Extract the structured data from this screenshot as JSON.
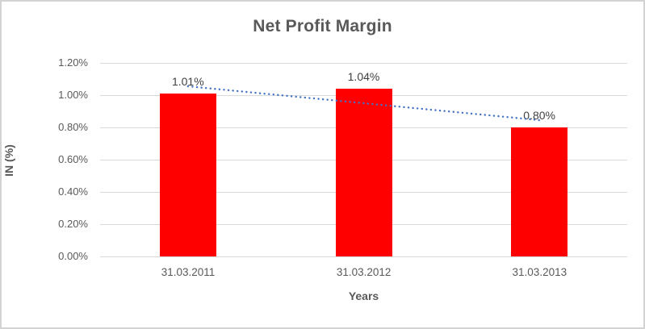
{
  "chart_data": {
    "type": "bar",
    "title": "Net Profit Margin",
    "xlabel": "Years",
    "ylabel": "IN (%)",
    "categories": [
      "31.03.2011",
      "31.03.2012",
      "31.03.2013"
    ],
    "series": [
      {
        "name": "Net Profit Margin",
        "values": [
          1.01,
          1.04,
          0.8
        ]
      }
    ],
    "data_labels": [
      "1.01%",
      "1.04%",
      "0.80%"
    ],
    "yticks": [
      "1.20%",
      "1.00%",
      "0.80%",
      "0.60%",
      "0.40%",
      "0.20%",
      "0.00%"
    ],
    "ylim": [
      0,
      1.2
    ],
    "ytick_step": 0.2,
    "grid": true,
    "legend": "none",
    "trendline": {
      "type": "linear",
      "style": "dotted",
      "start_value": 1.055,
      "end_value": 0.845
    },
    "colors": {
      "bar": "#FF0000",
      "trendline": "#4472C4",
      "grid": "#D9D9D9",
      "axis_text": "#595959",
      "data_label_text": "#404040",
      "frame_border": "#D3D3D3"
    }
  }
}
